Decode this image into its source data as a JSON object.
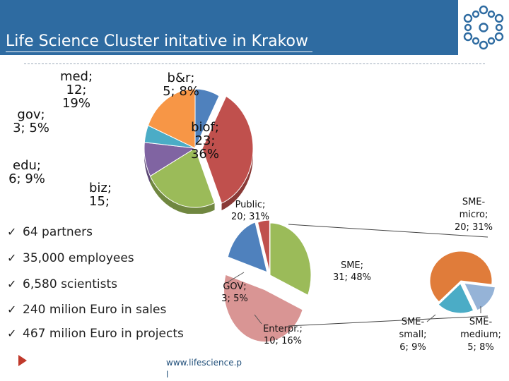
{
  "header": {
    "title": "Life Science Cluster initative in Krakow"
  },
  "logo": {
    "icon": "molecule-network-logo",
    "color": "#2e6ba1"
  },
  "bullets": [
    "64 partners",
    "35,000 employees",
    "6,580 scientists",
    "240 milion Euro in sales",
    "467 milion Euro in projects"
  ],
  "footer": {
    "url_line1": "www.lifescience.p",
    "url_line2": "l"
  },
  "chart_data": [
    {
      "type": "pie",
      "title": "",
      "slices": [
        {
          "name": "b&r",
          "value": 5,
          "percent": 8,
          "label": "b&r;\n5; 8%",
          "color": "#4f81bd"
        },
        {
          "name": "biof",
          "value": 23,
          "percent": 36,
          "label": "biof;\n23;\n36%",
          "color": "#c0504d"
        },
        {
          "name": "biz",
          "value": 15,
          "percent": null,
          "label": "biz;\n15;",
          "color": "#9bbb59"
        },
        {
          "name": "edu",
          "value": 6,
          "percent": 9,
          "label": "edu;\n6; 9%",
          "color": "#8064a2"
        },
        {
          "name": "gov",
          "value": 3,
          "percent": 5,
          "label": "gov;\n3; 5%",
          "color": "#4bacc6"
        },
        {
          "name": "med",
          "value": 12,
          "percent": 19,
          "label": "med;\n12;\n19%",
          "color": "#f79646"
        }
      ]
    },
    {
      "type": "pie",
      "title": "",
      "slices": [
        {
          "name": "Public",
          "value": 20,
          "percent": 31,
          "label": "Public;\n20; 31%",
          "color": "#9bbb59"
        },
        {
          "name": "SME",
          "value": 31,
          "percent": 48,
          "label": "SME;\n31; 48%",
          "color": "#d99594"
        },
        {
          "name": "Enterpr.",
          "value": 10,
          "percent": 16,
          "label": "Enterpr.;\n10; 16%",
          "color": "#4f81bd"
        },
        {
          "name": "GOV",
          "value": 3,
          "percent": 5,
          "label": "GOV;\n3; 5%",
          "color": "#c0504d"
        }
      ]
    },
    {
      "type": "pie",
      "title": "",
      "slices": [
        {
          "name": "SME-micro",
          "value": 20,
          "percent": 31,
          "label": "SME-\nmicro;\n20; 31%",
          "color": "#e07c3a"
        },
        {
          "name": "SME-medium",
          "value": 5,
          "percent": 8,
          "label": "SME-\nmedium;\n5; 8%",
          "color": "#95b3d7"
        },
        {
          "name": "SME-small",
          "value": 6,
          "percent": 9,
          "label": "SME-\nsmall;\n6; 9%",
          "color": "#4bacc6"
        }
      ]
    }
  ]
}
